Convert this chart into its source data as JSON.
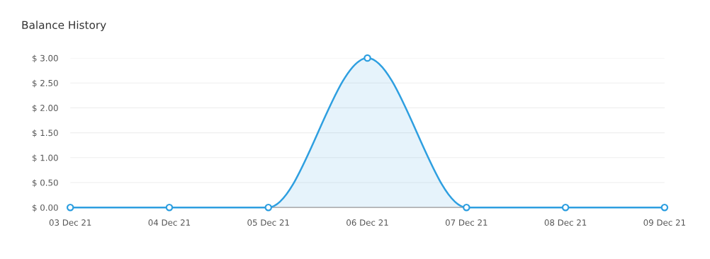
{
  "chart_data": {
    "type": "area",
    "title": "Balance History",
    "categories": [
      "03 Dec 21",
      "04 Dec 21",
      "05 Dec 21",
      "06 Dec 21",
      "07 Dec 21",
      "08 Dec 21",
      "09 Dec 21"
    ],
    "values": [
      0,
      0,
      0,
      3,
      0,
      0,
      0
    ],
    "color": "#2e9fe0",
    "ylim": [
      0,
      3
    ],
    "yticks": [
      {
        "value": 0,
        "label": "$ 0.00"
      },
      {
        "value": 0.5,
        "label": "$ 0.50"
      },
      {
        "value": 1,
        "label": "$ 1.00"
      },
      {
        "value": 1.5,
        "label": "$ 1.50"
      },
      {
        "value": 2,
        "label": "$ 2.00"
      },
      {
        "value": 2.5,
        "label": "$ 2.50"
      },
      {
        "value": 3,
        "label": "$ 3.00"
      }
    ],
    "grid": "y",
    "marker": "circle",
    "line_style": "solid",
    "legend": false
  }
}
